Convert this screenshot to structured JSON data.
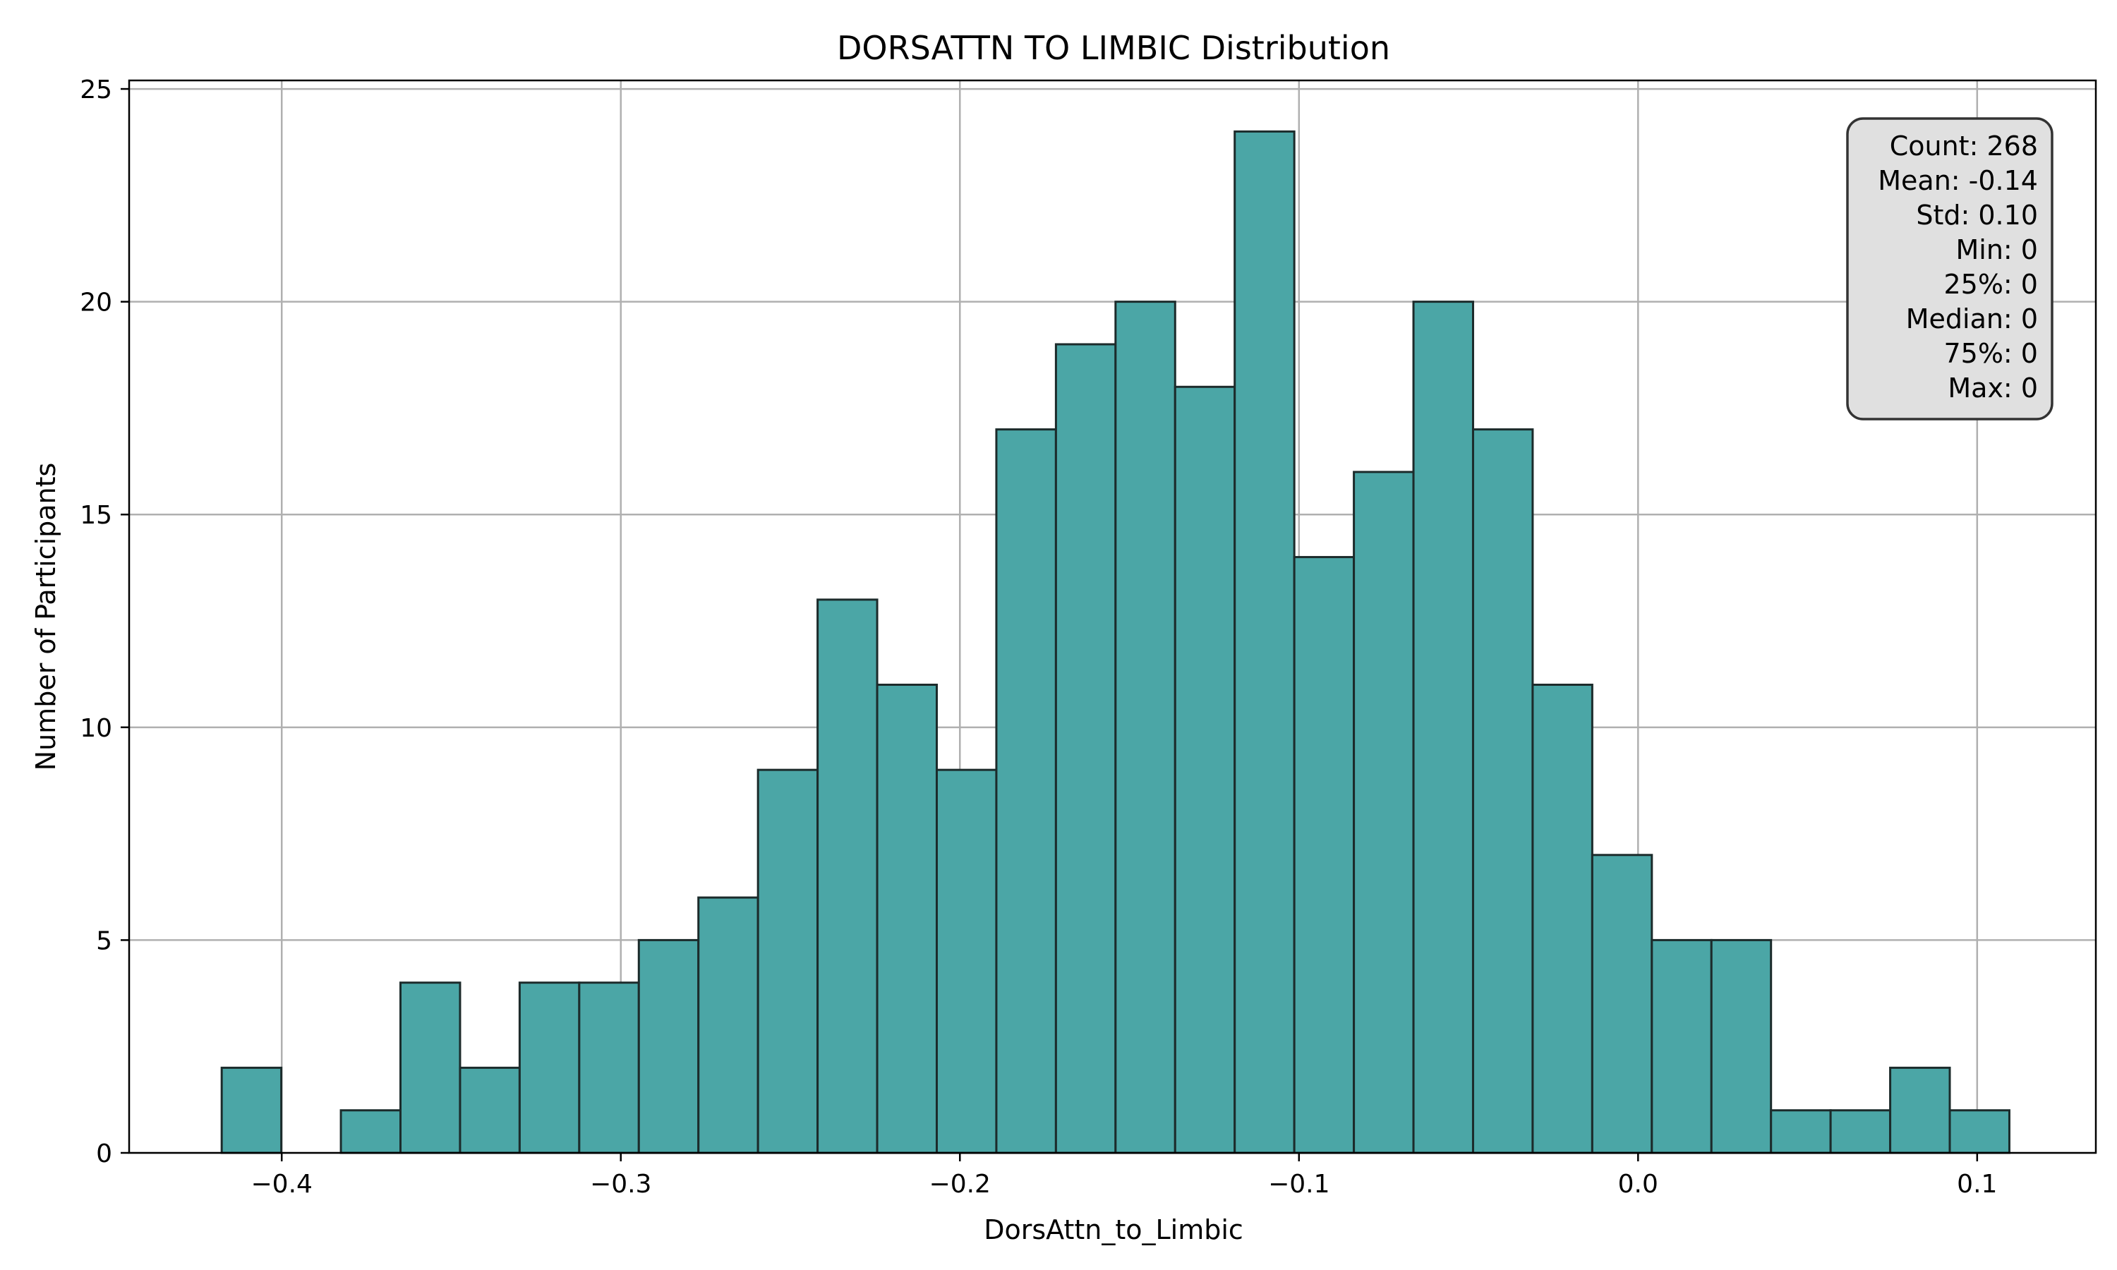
{
  "chart_data": {
    "type": "bar",
    "title": "DORSATTN TO LIMBIC Distribution",
    "xlabel": "DorsAttn_to_Limbic",
    "ylabel": "Number of Participants",
    "xlim": [
      -0.445,
      0.135
    ],
    "ylim": [
      0,
      25.2
    ],
    "x_ticks": [
      -0.4,
      -0.3,
      -0.2,
      -0.1,
      0.0,
      0.1
    ],
    "x_tick_labels": [
      "−0.4",
      "−0.3",
      "−0.2",
      "−0.1",
      "0.0",
      "0.1"
    ],
    "y_ticks": [
      0,
      5,
      10,
      15,
      20,
      25
    ],
    "y_tick_labels": [
      "0",
      "5",
      "10",
      "15",
      "20",
      "25"
    ],
    "grid": true,
    "bin_range": [
      -0.4177,
      0.1095
    ],
    "counts": [
      2,
      0,
      1,
      4,
      2,
      4,
      4,
      5,
      6,
      9,
      13,
      11,
      9,
      17,
      19,
      20,
      18,
      24,
      14,
      16,
      20,
      17,
      11,
      7,
      5,
      5,
      1,
      1,
      2,
      1
    ],
    "bar_color": "#4ba6a6",
    "edge_color": "#1c2b2b",
    "stats_box": {
      "placement": "top-right",
      "lines": [
        "Count: 268",
        "Mean: -0.14",
        "Std: 0.10",
        "Min: 0",
        "25%: 0",
        "Median: 0",
        "75%: 0",
        "Max: 0"
      ]
    }
  }
}
